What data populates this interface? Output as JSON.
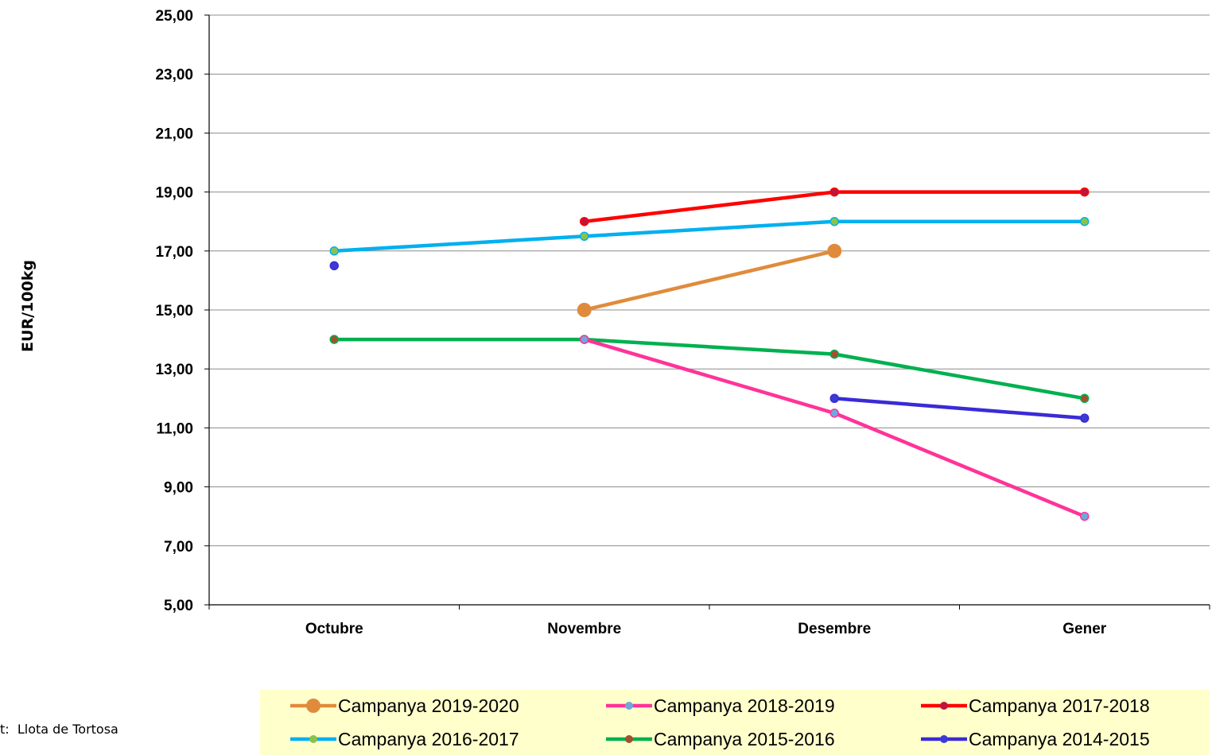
{
  "source_text": "t:  Llota de Tortosa",
  "chart_data": {
    "type": "line",
    "ylabel": "EUR/100kg",
    "xlabel": "",
    "categories": [
      "Octubre",
      "Novembre",
      "Desembre",
      "Gener"
    ],
    "ylim": [
      5,
      25
    ],
    "yticks": [
      "5,00",
      "7,00",
      "9,00",
      "11,00",
      "13,00",
      "15,00",
      "17,00",
      "19,00",
      "21,00",
      "23,00",
      "25,00"
    ],
    "ytick_values": [
      5,
      7,
      9,
      11,
      13,
      15,
      17,
      19,
      21,
      23,
      25
    ],
    "grid": true,
    "legend_position": "bottom",
    "series": [
      {
        "name": "Campanya 2019-2020",
        "values": [
          null,
          15.0,
          17.0,
          null
        ],
        "color": "#e08b3c",
        "marker_color": "#e08b3c",
        "marker": "large"
      },
      {
        "name": "Campanya 2018-2019",
        "values": [
          null,
          14.0,
          11.5,
          8.0
        ],
        "color": "#ff3399",
        "marker_color": "#6fa8dc",
        "marker": "small"
      },
      {
        "name": "Campanya 2017-2018",
        "values": [
          null,
          18.0,
          19.0,
          19.0
        ],
        "color": "#ff0000",
        "marker_color": "#c0143c",
        "marker": "small"
      },
      {
        "name": "Campanya 2016-2017",
        "values": [
          17.0,
          17.5,
          18.0,
          18.0
        ],
        "color": "#00b0f0",
        "marker_color": "#8bc34a",
        "marker": "small"
      },
      {
        "name": "Campanya 2015-2016",
        "values": [
          14.0,
          14.0,
          13.5,
          12.0
        ],
        "color": "#00b050",
        "marker_color": "#a0522d",
        "marker": "small"
      },
      {
        "name": "Campanya 2014-2015",
        "values": [
          16.5,
          null,
          12.0,
          11.33
        ],
        "color": "#3a2bd6",
        "marker_color": "#3a3ad6",
        "marker": "small"
      }
    ]
  }
}
